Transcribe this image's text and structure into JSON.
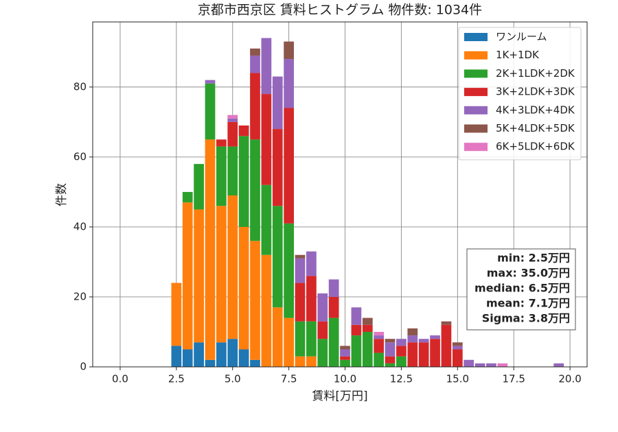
{
  "chart_data": {
    "type": "stacked_histogram",
    "title": "京都市西京区 賃料ヒストグラム  物件数: 1034件",
    "x_label": "賃料[万円]",
    "y_label": "件数",
    "bins": [
      2.25,
      2.75,
      3.25,
      3.75,
      4.25,
      4.75,
      5.25,
      5.75,
      6.25,
      6.75,
      7.25,
      7.75,
      8.25,
      8.75,
      9.25,
      9.75,
      10.25,
      10.75,
      11.25,
      11.75,
      12.25,
      12.75,
      13.25,
      13.75,
      14.25,
      14.75,
      15.25,
      15.75,
      16.25,
      16.75,
      17.25,
      17.75,
      18.25,
      18.75,
      19.25,
      19.75
    ],
    "series": [
      {
        "name": "ワンルーム",
        "color": "#1f77b4",
        "values": [
          6,
          5,
          7,
          2,
          7,
          8,
          5,
          2,
          0,
          0,
          0,
          0,
          0,
          0,
          0,
          0,
          0,
          0,
          0,
          0,
          0,
          0,
          0,
          0,
          0,
          0,
          0,
          0,
          0,
          0,
          0,
          0,
          0,
          0,
          0
        ]
      },
      {
        "name": "1K+1DK",
        "color": "#ff7f0e",
        "values": [
          18,
          42,
          38,
          63,
          39,
          41,
          35,
          34,
          32,
          17,
          14,
          3,
          3,
          0,
          0,
          0,
          0,
          0,
          0,
          0,
          0,
          0,
          0,
          0,
          0,
          0,
          0,
          0,
          0,
          0,
          0,
          0,
          0,
          0,
          0
        ]
      },
      {
        "name": "2K+1LDK+2DK",
        "color": "#2ca02c",
        "values": [
          0,
          3,
          13,
          16,
          17,
          14,
          26,
          29,
          20,
          29,
          27,
          10,
          10,
          8,
          14,
          2,
          9,
          10,
          4,
          1,
          3,
          0,
          0,
          0,
          0,
          0,
          0,
          0,
          0,
          0,
          0,
          0,
          0,
          0,
          0
        ]
      },
      {
        "name": "3K+2LDK+3DK",
        "color": "#d62728",
        "values": [
          0,
          0,
          0,
          0,
          2,
          7,
          3,
          19,
          26,
          22,
          33,
          11,
          13,
          5,
          6,
          1,
          3,
          2,
          4,
          2,
          3,
          7,
          7,
          8,
          12,
          5,
          0,
          0,
          0,
          0,
          0,
          0,
          0,
          0,
          0
        ]
      },
      {
        "name": "4K+3LDK+4DK",
        "color": "#9467bd",
        "values": [
          0,
          0,
          0,
          1,
          0,
          1,
          0,
          5,
          16,
          15,
          14,
          7,
          7,
          8,
          5,
          2,
          5,
          0,
          1,
          4,
          2,
          2,
          1,
          1,
          0,
          1,
          2,
          1,
          1,
          0,
          0,
          0,
          0,
          0,
          1
        ]
      },
      {
        "name": "5K+4LDK+5DK",
        "color": "#8c564b",
        "values": [
          0,
          0,
          0,
          0,
          0,
          0,
          0,
          2,
          0,
          0,
          5,
          1,
          0,
          0,
          0,
          1,
          0,
          2,
          0,
          1,
          0,
          2,
          0,
          0,
          1,
          1,
          0,
          0,
          0,
          0,
          0,
          0,
          0,
          0,
          0
        ]
      },
      {
        "name": "6K+5LDK+6DK",
        "color": "#e377c2",
        "values": [
          0,
          0,
          0,
          0,
          0,
          1,
          0,
          0,
          0,
          0,
          0,
          0,
          0,
          0,
          0,
          0,
          0,
          0,
          1,
          0,
          0,
          0,
          0,
          0,
          0,
          0,
          0,
          0,
          0,
          1,
          0,
          0,
          0,
          0,
          0
        ]
      }
    ],
    "xlim": [
      -1.22,
      20.76
    ],
    "ylim": [
      0,
      98.6
    ],
    "xticks": [
      {
        "value": 0,
        "label": "0.0"
      },
      {
        "value": 2.5,
        "label": "2.5"
      },
      {
        "value": 5,
        "label": "5.0"
      },
      {
        "value": 7.5,
        "label": "7.5"
      },
      {
        "value": 10,
        "label": "10.0"
      },
      {
        "value": 12.5,
        "label": "12.5"
      },
      {
        "value": 15,
        "label": "15.0"
      },
      {
        "value": 17.5,
        "label": "17.5"
      },
      {
        "value": 20,
        "label": "20.0"
      }
    ],
    "yticks": [
      0,
      20,
      40,
      60,
      80
    ],
    "grid": true,
    "legend": "upper right",
    "annotations": [
      "min: 2.5万円",
      "max: 35.0万円",
      "median: 6.5万円",
      "mean: 7.1万円",
      "Sigma: 3.8万円"
    ]
  }
}
